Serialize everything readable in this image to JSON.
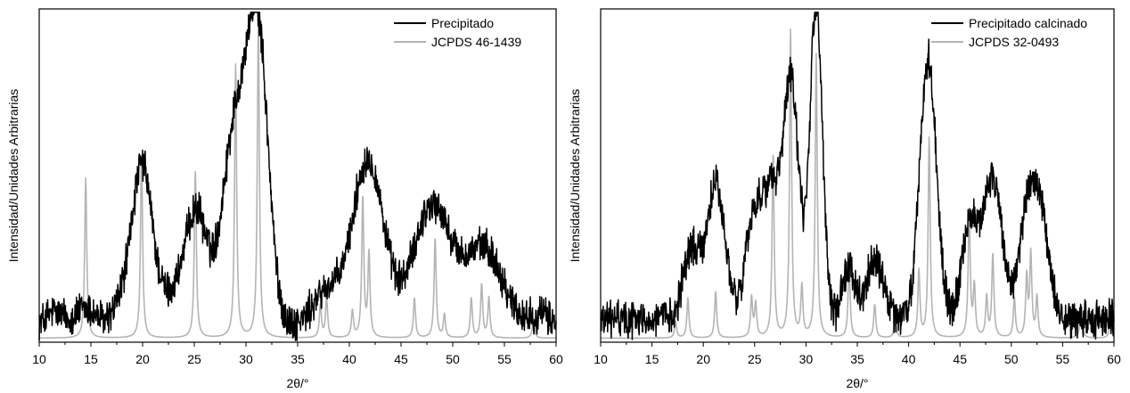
{
  "chart_data": [
    {
      "type": "line",
      "title": "",
      "xlabel": "2θ/°",
      "ylabel": "Intensidad/Unidades Arbitrarias",
      "xlim": [
        10,
        60
      ],
      "ylim": [
        0,
        1
      ],
      "xticks": [
        10,
        15,
        20,
        25,
        30,
        35,
        40,
        45,
        50,
        55,
        60
      ],
      "yticks_visible": false,
      "legend_position": "top-right",
      "grid": false,
      "series": [
        {
          "name": "Precipitado",
          "color": "#000000",
          "kind": "noisy-pattern",
          "baseline": 0.05,
          "peaks": [
            {
              "x": 11.5,
              "y": 0.04,
              "w": 0.8
            },
            {
              "x": 14.5,
              "y": 0.05,
              "w": 1.0
            },
            {
              "x": 18.5,
              "y": 0.1,
              "w": 1.0
            },
            {
              "x": 20.0,
              "y": 0.42,
              "w": 0.9
            },
            {
              "x": 22.0,
              "y": 0.08,
              "w": 1.5
            },
            {
              "x": 24.5,
              "y": 0.16,
              "w": 1.0
            },
            {
              "x": 25.5,
              "y": 0.22,
              "w": 0.9
            },
            {
              "x": 29.0,
              "y": 0.6,
              "w": 1.3
            },
            {
              "x": 31.2,
              "y": 0.8,
              "w": 1.0
            },
            {
              "x": 37.8,
              "y": 0.1,
              "w": 1.3
            },
            {
              "x": 41.8,
              "y": 0.5,
              "w": 1.5
            },
            {
              "x": 48.0,
              "y": 0.36,
              "w": 1.8
            },
            {
              "x": 53.0,
              "y": 0.23,
              "w": 1.8
            },
            {
              "x": 58.5,
              "y": 0.03,
              "w": 1.0
            }
          ]
        },
        {
          "name": "JCPDS 46-1439",
          "color": "#b4b4b4",
          "kind": "reference",
          "peaks": [
            {
              "x": 14.5,
              "y": 0.48
            },
            {
              "x": 19.9,
              "y": 0.55
            },
            {
              "x": 25.1,
              "y": 0.5
            },
            {
              "x": 29.0,
              "y": 0.82
            },
            {
              "x": 31.2,
              "y": 0.95
            },
            {
              "x": 37.2,
              "y": 0.1
            },
            {
              "x": 37.8,
              "y": 0.12
            },
            {
              "x": 40.3,
              "y": 0.08
            },
            {
              "x": 41.3,
              "y": 0.42
            },
            {
              "x": 41.9,
              "y": 0.25
            },
            {
              "x": 46.3,
              "y": 0.12
            },
            {
              "x": 48.3,
              "y": 0.3
            },
            {
              "x": 49.2,
              "y": 0.07
            },
            {
              "x": 51.8,
              "y": 0.12
            },
            {
              "x": 52.8,
              "y": 0.16
            },
            {
              "x": 53.5,
              "y": 0.12
            },
            {
              "x": 57.8,
              "y": 0.06
            }
          ]
        }
      ]
    },
    {
      "type": "line",
      "title": "",
      "xlabel": "2θ/°",
      "ylabel": "Intensidad/Unidades Arbitrarias",
      "xlim": [
        10,
        60
      ],
      "ylim": [
        0,
        1
      ],
      "xticks": [
        10,
        15,
        20,
        25,
        30,
        35,
        40,
        45,
        50,
        55,
        60
      ],
      "yticks_visible": false,
      "legend_position": "top-right",
      "grid": false,
      "series": [
        {
          "name": "Precipitado calcinado",
          "color": "#000000",
          "kind": "noisy-pattern",
          "baseline": 0.07,
          "peaks": [
            {
              "x": 18.8,
              "y": 0.2,
              "w": 0.8
            },
            {
              "x": 21.2,
              "y": 0.4,
              "w": 0.9
            },
            {
              "x": 24.8,
              "y": 0.25,
              "w": 0.8
            },
            {
              "x": 26.0,
              "y": 0.22,
              "w": 0.8
            },
            {
              "x": 26.8,
              "y": 0.2,
              "w": 0.6
            },
            {
              "x": 28.5,
              "y": 0.72,
              "w": 0.8
            },
            {
              "x": 31.0,
              "y": 0.95,
              "w": 0.6
            },
            {
              "x": 34.2,
              "y": 0.16,
              "w": 0.6
            },
            {
              "x": 36.7,
              "y": 0.18,
              "w": 0.8
            },
            {
              "x": 41.9,
              "y": 0.78,
              "w": 0.8
            },
            {
              "x": 46.0,
              "y": 0.28,
              "w": 0.8
            },
            {
              "x": 48.2,
              "y": 0.42,
              "w": 0.9
            },
            {
              "x": 51.8,
              "y": 0.38,
              "w": 0.9
            },
            {
              "x": 53.2,
              "y": 0.18,
              "w": 0.7
            }
          ]
        },
        {
          "name": "JCPDS 32-0493",
          "color": "#b4b4b4",
          "kind": "reference",
          "peaks": [
            {
              "x": 17.3,
              "y": 0.05
            },
            {
              "x": 18.5,
              "y": 0.12
            },
            {
              "x": 21.2,
              "y": 0.14
            },
            {
              "x": 24.7,
              "y": 0.12
            },
            {
              "x": 25.1,
              "y": 0.1
            },
            {
              "x": 26.8,
              "y": 0.55
            },
            {
              "x": 28.5,
              "y": 0.92
            },
            {
              "x": 29.6,
              "y": 0.15
            },
            {
              "x": 31.0,
              "y": 0.85
            },
            {
              "x": 34.2,
              "y": 0.22
            },
            {
              "x": 36.7,
              "y": 0.1
            },
            {
              "x": 38.7,
              "y": 0.06
            },
            {
              "x": 41.0,
              "y": 0.2
            },
            {
              "x": 42.0,
              "y": 0.6
            },
            {
              "x": 45.9,
              "y": 0.38
            },
            {
              "x": 46.4,
              "y": 0.15
            },
            {
              "x": 47.6,
              "y": 0.12
            },
            {
              "x": 48.2,
              "y": 0.25
            },
            {
              "x": 50.3,
              "y": 0.12
            },
            {
              "x": 51.5,
              "y": 0.18
            },
            {
              "x": 51.9,
              "y": 0.25
            },
            {
              "x": 52.5,
              "y": 0.12
            },
            {
              "x": 56.8,
              "y": 0.1
            },
            {
              "x": 59.7,
              "y": 0.08
            }
          ]
        }
      ]
    }
  ]
}
